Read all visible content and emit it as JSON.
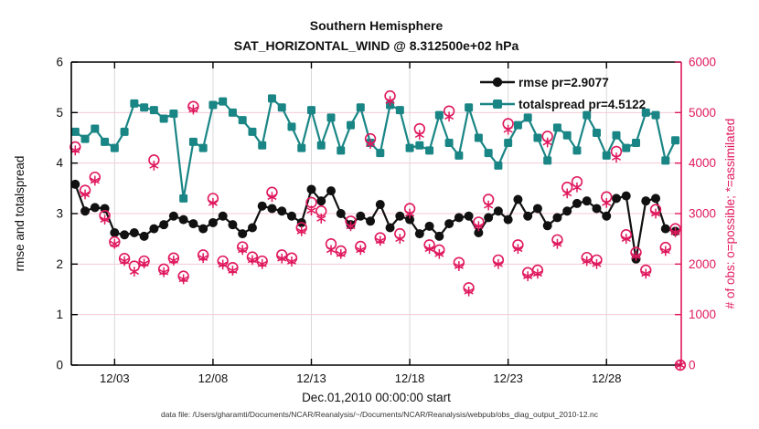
{
  "title": {
    "line1": "Southern Hemisphere",
    "line2": "SAT_HORIZONTAL_WIND @ 8.312500e+02 hPa"
  },
  "legend": {
    "items": [
      {
        "label": "rmse pr=2.9077",
        "marker": "filled-circle",
        "color": "#111111"
      },
      {
        "label": "totalspread pr=4.5122",
        "marker": "filled-square",
        "color": "#1a8585"
      }
    ]
  },
  "axes": {
    "left": {
      "label": "rmse and totalspread",
      "range": [
        0,
        6
      ],
      "ticks": [
        0,
        1,
        2,
        3,
        4,
        5,
        6
      ],
      "color": "#000000"
    },
    "right": {
      "label": "# of obs: o=possible; *=assimilated",
      "range": [
        0,
        6000
      ],
      "ticks": [
        0,
        1000,
        2000,
        3000,
        4000,
        5000,
        6000
      ],
      "color": "#e0185e"
    },
    "x": {
      "label": "Dec.01,2010 00:00:00 start",
      "range": [
        0.8,
        31.8
      ],
      "tick_days": [
        3,
        8,
        13,
        18,
        23,
        28
      ],
      "tick_labels": [
        "12/03",
        "12/08",
        "12/13",
        "12/18",
        "12/23",
        "12/28"
      ]
    }
  },
  "footer": {
    "text": "data file: /Users/gharamti/Documents/NCAR/Reanalysis/~/Documents/NCAR/Reanalysis/webpub/obs_diag_output_2010-12.nc"
  },
  "colors": {
    "rmse": "#111111",
    "totalspread": "#1a8585",
    "obs": "#e0185e",
    "grid_horizontal": "#f5c9d6",
    "grid_vertical": "#d9d9d9",
    "spine": "#000000"
  },
  "chart_data": {
    "type": "line",
    "grid": true,
    "legend_position": "top-right-inside",
    "xlabel": "Dec.01,2010 00:00:00 start",
    "ylabel_left": "rmse and totalspread",
    "ylabel_right": "# of obs: o=possible; *=assimilated",
    "ylim_left": [
      0,
      6
    ],
    "ylim_right": [
      0,
      6000
    ],
    "xlim_days": [
      0.8,
      31.8
    ],
    "x_days": [
      1,
      1.5,
      2,
      2.5,
      3,
      3.5,
      4,
      4.5,
      5,
      5.5,
      6,
      6.5,
      7,
      7.5,
      8,
      8.5,
      9,
      9.5,
      10,
      10.5,
      11,
      11.5,
      12,
      12.5,
      13,
      13.5,
      14,
      14.5,
      15,
      15.5,
      16,
      16.5,
      17,
      17.5,
      18,
      18.5,
      19,
      19.5,
      20,
      20.5,
      21,
      21.5,
      22,
      22.5,
      23,
      23.5,
      24,
      24.5,
      25,
      25.5,
      26,
      26.5,
      27,
      27.5,
      28,
      28.5,
      29,
      29.5,
      30,
      30.5,
      31,
      31.5
    ],
    "obs_days": [
      1,
      1.5,
      2,
      2.5,
      3,
      3.5,
      4,
      4.5,
      5,
      5.5,
      6,
      6.5,
      7,
      7.5,
      8,
      8.5,
      9,
      9.5,
      10,
      10.5,
      11,
      11.5,
      12,
      12.5,
      13,
      13.5,
      14,
      14.5,
      15,
      15.5,
      16,
      16.5,
      17,
      17.5,
      18,
      18.5,
      19,
      19.5,
      20,
      20.5,
      21,
      21.5,
      22,
      22.5,
      23,
      23.5,
      24,
      24.5,
      25,
      25.5,
      26,
      26.5,
      27,
      27.5,
      28,
      28.5,
      29,
      29.5,
      30,
      30.5,
      31,
      31.5,
      31.75
    ],
    "series": [
      {
        "name": "rmse pr=2.9077",
        "axis": "left",
        "marker": "filled-circle",
        "line": true,
        "color": "#111111",
        "values": [
          3.58,
          3.05,
          3.12,
          3.1,
          2.62,
          2.58,
          2.62,
          2.55,
          2.7,
          2.78,
          2.95,
          2.88,
          2.8,
          2.7,
          2.82,
          2.95,
          2.78,
          2.6,
          2.72,
          3.15,
          3.1,
          3.05,
          2.95,
          2.82,
          3.48,
          3.25,
          3.45,
          3.0,
          2.78,
          2.95,
          2.85,
          3.18,
          2.72,
          2.95,
          2.88,
          2.6,
          2.75,
          2.55,
          2.8,
          2.92,
          2.95,
          2.62,
          2.92,
          3.05,
          2.88,
          3.28,
          2.95,
          3.1,
          2.76,
          2.92,
          3.05,
          3.2,
          3.25,
          3.1,
          2.95,
          3.3,
          3.35,
          2.1,
          3.25,
          3.3,
          2.7,
          2.65
        ]
      },
      {
        "name": "totalspread pr=4.5122",
        "axis": "left",
        "marker": "filled-square",
        "line": true,
        "color": "#1a8585",
        "values": [
          4.62,
          4.48,
          4.68,
          4.42,
          4.3,
          4.62,
          5.18,
          5.1,
          5.05,
          4.88,
          4.98,
          3.3,
          4.42,
          4.3,
          5.15,
          5.22,
          5.0,
          4.85,
          4.62,
          4.35,
          5.28,
          5.1,
          4.72,
          4.3,
          5.05,
          4.35,
          4.9,
          4.25,
          4.75,
          5.1,
          4.4,
          4.2,
          5.15,
          5.05,
          4.3,
          4.35,
          4.25,
          4.95,
          4.4,
          4.15,
          5.1,
          4.5,
          4.2,
          3.95,
          4.4,
          4.75,
          4.9,
          4.5,
          4.05,
          4.7,
          4.55,
          4.25,
          4.95,
          4.6,
          4.15,
          4.55,
          4.3,
          4.4,
          5.0,
          4.95,
          4.05,
          4.45
        ]
      },
      {
        "name": "possible",
        "axis": "right",
        "marker": "open-circle",
        "line": false,
        "color": "#e0185e",
        "values": [
          4320,
          3460,
          3720,
          2960,
          2440,
          2110,
          1960,
          2060,
          4060,
          1900,
          2120,
          1760,
          5120,
          2180,
          3300,
          2060,
          1930,
          2340,
          2140,
          2060,
          3420,
          2180,
          2120,
          2720,
          3220,
          3050,
          2400,
          2260,
          2850,
          2350,
          4480,
          2520,
          5330,
          2600,
          3100,
          4680,
          2380,
          2280,
          5030,
          2030,
          1530,
          2830,
          3280,
          2080,
          4780,
          2380,
          1830,
          1880,
          4530,
          2480,
          3520,
          3630,
          2130,
          2080,
          3330,
          4230,
          2580,
          2230,
          1880,
          3080,
          2330,
          2700,
          0
        ]
      },
      {
        "name": "assimilated",
        "axis": "right",
        "marker": "asterisk",
        "line": false,
        "color": "#e0185e",
        "values": [
          4250,
          3380,
          3650,
          2880,
          2400,
          2060,
          1850,
          2010,
          3950,
          1840,
          2070,
          1700,
          5060,
          2120,
          3210,
          1990,
          1870,
          2280,
          2080,
          2000,
          3330,
          2110,
          2050,
          2650,
          3060,
          2900,
          2280,
          2200,
          2750,
          2280,
          4380,
          2460,
          5230,
          2500,
          3000,
          4560,
          2300,
          2200,
          4920,
          1960,
          1460,
          2750,
          3160,
          2000,
          4660,
          2300,
          1760,
          1810,
          4410,
          2400,
          3400,
          3520,
          2060,
          2000,
          3210,
          4110,
          2500,
          2160,
          1810,
          3000,
          2260,
          2630,
          0
        ]
      }
    ]
  }
}
